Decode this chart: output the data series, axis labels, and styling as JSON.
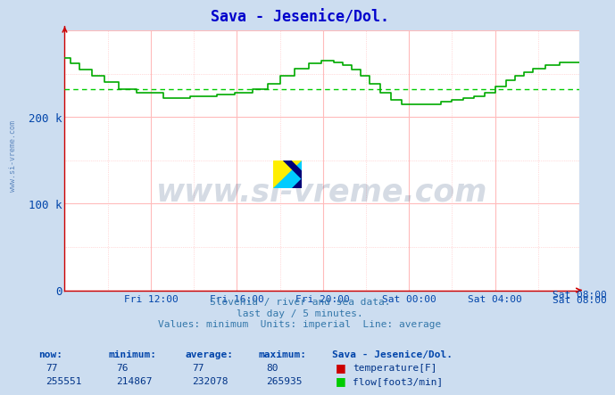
{
  "title": "Sava - Jesenice/Dol.",
  "title_color": "#0000cc",
  "bg_color": "#ccddf0",
  "plot_bg_color": "#ffffff",
  "grid_color_h": "#ffbbbb",
  "grid_color_v": "#ffbbbb",
  "axis_color": "#cc0000",
  "ylabel_color": "#0044aa",
  "xlabel_color": "#0044aa",
  "flow_color": "#00aa00",
  "avg_line_color": "#00cc00",
  "avg_value": 232078,
  "ylim": [
    0,
    300000
  ],
  "yticks": [
    0,
    100000,
    200000
  ],
  "ytick_labels": [
    "0",
    "100 k",
    "200 k"
  ],
  "xtick_labels": [
    "Fri 12:00",
    "Fri 16:00",
    "Fri 20:00",
    "Sat 00:00",
    "Sat 04:00",
    "Sat 08:00"
  ],
  "subtitle_lines": [
    "Slovenia / river and sea data.",
    "last day / 5 minutes.",
    "Values: minimum  Units: imperial  Line: average"
  ],
  "subtitle_color": "#3377aa",
  "watermark_text": "www.si-vreme.com",
  "watermark_color": "#1a3a6a",
  "watermark_alpha": 0.18,
  "side_watermark_color": "#3366aa",
  "now_temp": 77,
  "min_temp": 76,
  "avg_temp": 77,
  "max_temp": 80,
  "now_flow": 255551,
  "min_flow": 214867,
  "avg_flow": 232078,
  "max_flow": 265935,
  "station_label": "Sava - Jesenice/Dol.",
  "table_header_color": "#0044aa",
  "table_value_color": "#003388",
  "temp_square_color": "#cc0000",
  "flow_square_color": "#00cc00"
}
